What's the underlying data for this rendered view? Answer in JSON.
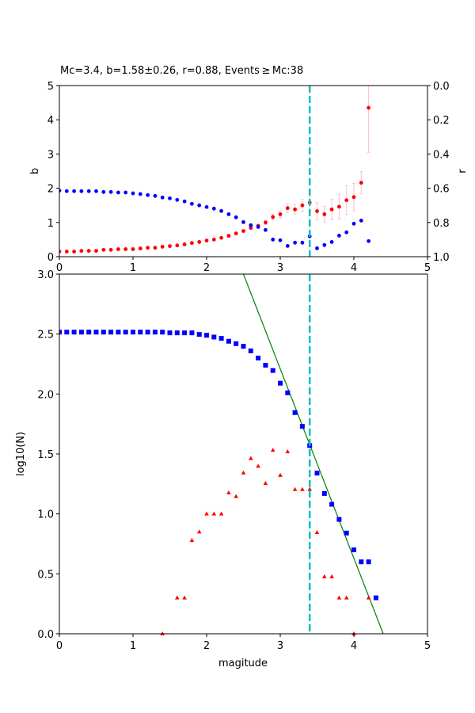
{
  "chart_data": [
    {
      "type": "scatter",
      "title": "Mc=3.4, b=1.58±0.26, r=0.88, Events ≥ Mc:38",
      "xlabel": "",
      "ylabel": "b",
      "ylabel_right": "r",
      "xlim": [
        0,
        5
      ],
      "ylim": [
        0,
        5
      ],
      "ylim_right": [
        1.0,
        0.0
      ],
      "xticks": [
        "0",
        "1",
        "2",
        "3",
        "4",
        "5"
      ],
      "yticks": [
        "0",
        "1",
        "2",
        "3",
        "4",
        "5"
      ],
      "yticks_right": [
        "0.0",
        "0.2",
        "0.4",
        "0.6",
        "0.8",
        "1.0"
      ],
      "mc_line": 3.4,
      "x": [
        0,
        0.1,
        0.2,
        0.3,
        0.4,
        0.5,
        0.6,
        0.7,
        0.8,
        0.9,
        1.0,
        1.1,
        1.2,
        1.3,
        1.4,
        1.5,
        1.6,
        1.7,
        1.8,
        1.9,
        2.0,
        2.1,
        2.2,
        2.3,
        2.4,
        2.5,
        2.6,
        2.7,
        2.8,
        2.9,
        3.0,
        3.1,
        3.2,
        3.3,
        3.4,
        3.5,
        3.6,
        3.7,
        3.8,
        3.9,
        4.0,
        4.1,
        4.2
      ],
      "series": [
        {
          "name": "b",
          "color": "#ff0000",
          "axis": "left",
          "values": [
            0.15,
            0.15,
            0.15,
            0.17,
            0.17,
            0.17,
            0.2,
            0.2,
            0.22,
            0.22,
            0.22,
            0.24,
            0.26,
            0.26,
            0.29,
            0.31,
            0.33,
            0.36,
            0.4,
            0.43,
            0.47,
            0.5,
            0.55,
            0.61,
            0.68,
            0.75,
            0.84,
            0.9,
            1.0,
            1.16,
            1.24,
            1.42,
            1.38,
            1.5,
            1.58,
            1.33,
            1.24,
            1.38,
            1.46,
            1.65,
            1.74,
            2.16,
            4.35
          ],
          "errors": [
            0.01,
            0.01,
            0.01,
            0.01,
            0.01,
            0.01,
            0.01,
            0.01,
            0.01,
            0.01,
            0.01,
            0.01,
            0.01,
            0.01,
            0.01,
            0.01,
            0.01,
            0.01,
            0.01,
            0.02,
            0.02,
            0.02,
            0.02,
            0.03,
            0.03,
            0.03,
            0.04,
            0.05,
            0.06,
            0.08,
            0.1,
            0.13,
            0.14,
            0.17,
            0.26,
            0.25,
            0.23,
            0.3,
            0.36,
            0.42,
            0.4,
            0.33,
            1.3
          ]
        },
        {
          "name": "r",
          "color": "#0000ff",
          "axis": "right",
          "values": [
            0.614,
            0.617,
            0.617,
            0.617,
            0.617,
            0.617,
            0.622,
            0.622,
            0.625,
            0.625,
            0.63,
            0.634,
            0.64,
            0.645,
            0.654,
            0.659,
            0.668,
            0.677,
            0.691,
            0.7,
            0.71,
            0.719,
            0.733,
            0.752,
            0.77,
            0.798,
            0.816,
            0.826,
            0.844,
            0.9,
            0.904,
            0.937,
            0.918,
            0.918,
            0.881,
            0.951,
            0.932,
            0.914,
            0.877,
            0.858,
            0.807,
            0.789,
            0.909
          ]
        }
      ],
      "error_color": "#ffc0cb",
      "mc_color": "#00bfbf"
    },
    {
      "type": "scatter",
      "title": "",
      "xlabel": "magitude",
      "ylabel": "log10(N)",
      "xlim": [
        0,
        5
      ],
      "ylim": [
        0,
        3
      ],
      "xticks": [
        "0",
        "1",
        "2",
        "3",
        "4",
        "5"
      ],
      "yticks": [
        "0.0",
        "0.5",
        "1.0",
        "1.5",
        "2.0",
        "2.5",
        "3.0"
      ],
      "mc_line": 3.4,
      "series": [
        {
          "name": "cumulative",
          "color": "#0000ff",
          "marker": "square",
          "x": [
            0,
            0.1,
            0.2,
            0.3,
            0.4,
            0.5,
            0.6,
            0.7,
            0.8,
            0.9,
            1.0,
            1.1,
            1.2,
            1.3,
            1.4,
            1.5,
            1.6,
            1.7,
            1.8,
            1.9,
            2.0,
            2.1,
            2.2,
            2.3,
            2.4,
            2.5,
            2.6,
            2.7,
            2.8,
            2.9,
            3.0,
            3.1,
            3.2,
            3.3,
            3.4,
            3.5,
            3.6,
            3.7,
            3.8,
            3.9,
            4.0,
            4.1,
            4.2,
            4.3
          ],
          "values": [
            2.516,
            2.516,
            2.516,
            2.516,
            2.516,
            2.516,
            2.516,
            2.516,
            2.516,
            2.516,
            2.516,
            2.516,
            2.516,
            2.516,
            2.516,
            2.51,
            2.51,
            2.51,
            2.51,
            2.497,
            2.49,
            2.475,
            2.464,
            2.44,
            2.42,
            2.398,
            2.36,
            2.3,
            2.24,
            2.196,
            2.09,
            2.01,
            1.845,
            1.73,
            1.57,
            1.34,
            1.17,
            1.08,
            0.954,
            0.84,
            0.7,
            0.6,
            0.6,
            0.3
          ]
        },
        {
          "name": "non-cumulative",
          "color": "#ff0000",
          "marker": "triangle",
          "x": [
            1.4,
            1.6,
            1.7,
            1.8,
            1.9,
            2.0,
            2.1,
            2.2,
            2.3,
            2.4,
            2.5,
            2.6,
            2.7,
            2.8,
            2.9,
            3.0,
            3.1,
            3.2,
            3.3,
            3.4,
            3.5,
            3.6,
            3.7,
            3.8,
            3.9,
            4.0,
            4.2
          ],
          "values": [
            0,
            0.3,
            0.3,
            0.78,
            0.85,
            1.0,
            1.0,
            1.0,
            1.176,
            1.146,
            1.342,
            1.462,
            1.398,
            1.255,
            1.531,
            1.322,
            1.519,
            1.204,
            1.204,
            1.204,
            0.845,
            0.477,
            0.477,
            0.3,
            0.3,
            0,
            0.3
          ]
        }
      ],
      "fit_line": {
        "color": "#008000",
        "a": 6.95,
        "b": 1.58
      },
      "mc_color": "#00bfbf"
    }
  ]
}
